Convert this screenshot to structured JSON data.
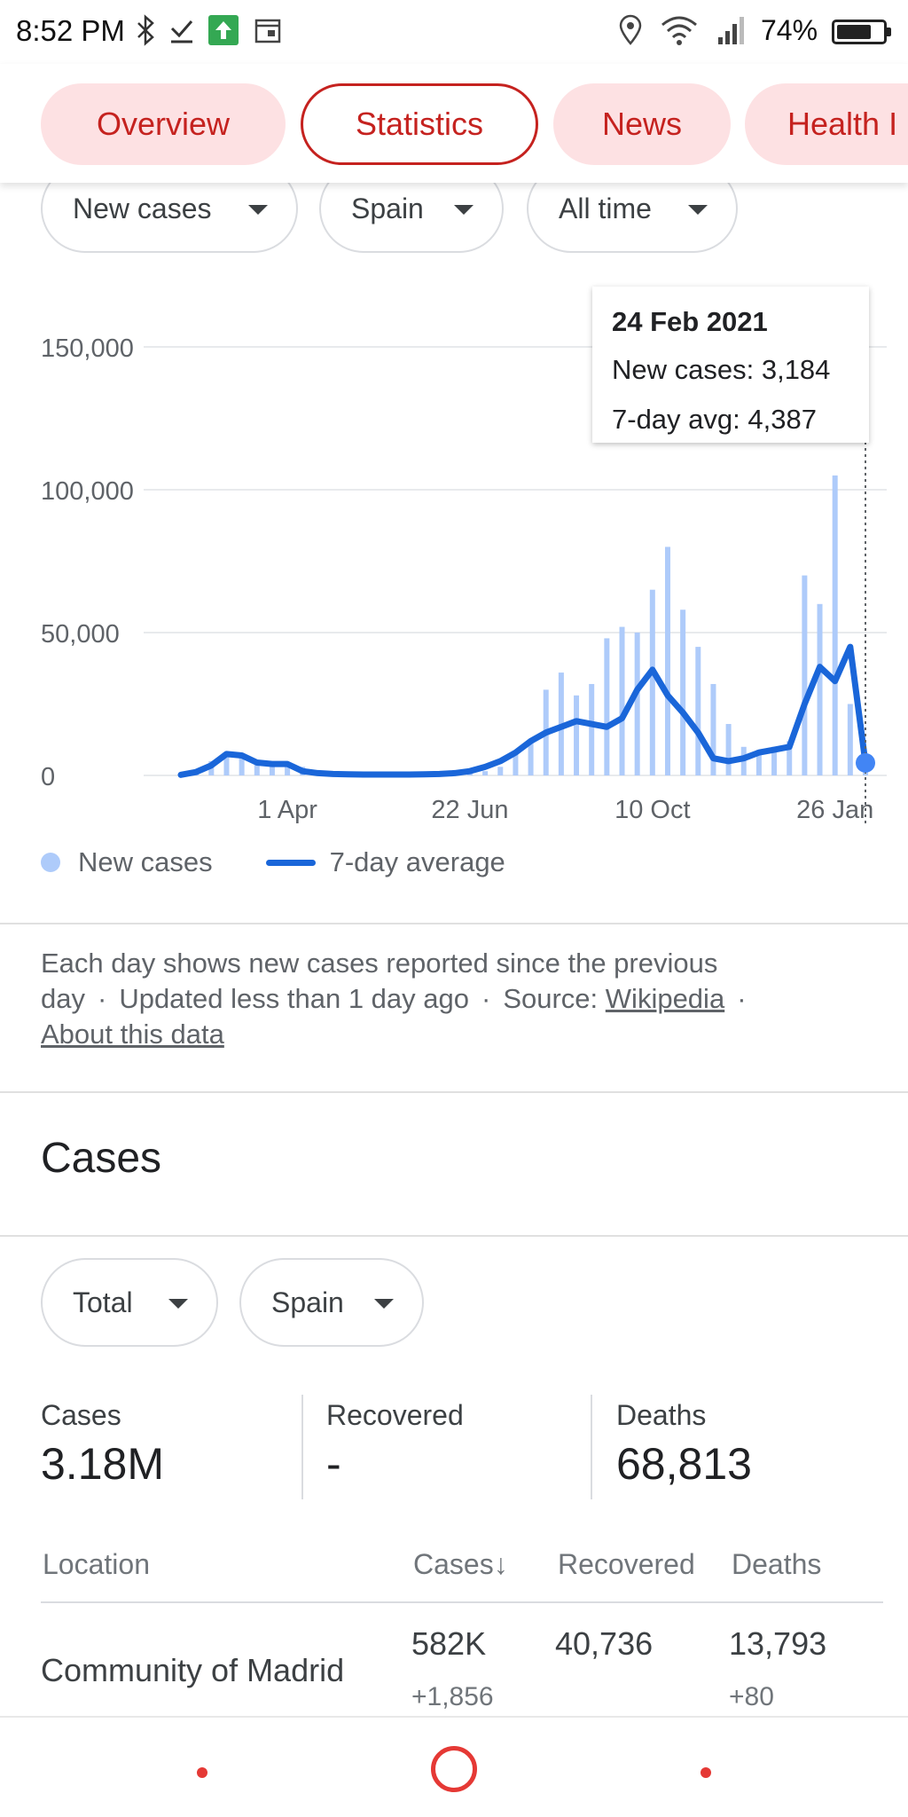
{
  "status_bar": {
    "time": "8:52 PM",
    "battery_text": "74%",
    "battery_level": 0.74,
    "icons": [
      "bluetooth-icon",
      "download-done-icon",
      "app-update-icon",
      "calendar-icon",
      "location-icon",
      "wifi-icon",
      "cell-signal-icon",
      "battery-icon"
    ]
  },
  "tabs": [
    {
      "label": "Overview",
      "active": false
    },
    {
      "label": "Statistics",
      "active": true
    },
    {
      "label": "News",
      "active": false
    },
    {
      "label": "Health I",
      "active": false
    }
  ],
  "filters": {
    "metric": "New cases",
    "region": "Spain",
    "period": "All time"
  },
  "tooltip": {
    "date": "24 Feb 2021",
    "new_cases": "New cases: 3,184",
    "avg": "7-day avg: 4,387"
  },
  "colors": {
    "accent_red": "#c5221f",
    "tab_bg": "#fde1e3",
    "line_blue": "#1a66d9",
    "bar_blue": "#aecbfa"
  },
  "legend": {
    "bars": "New cases",
    "line": "7-day average"
  },
  "chart_data": {
    "type": "bar",
    "ylim": [
      0,
      150000
    ],
    "y_ticks": [
      {
        "value": 0,
        "label": "0"
      },
      {
        "value": 50000,
        "label": "50,000"
      },
      {
        "value": 100000,
        "label": "100,000"
      },
      {
        "value": 150000,
        "label": "150,000"
      }
    ],
    "x_ticks": [
      {
        "week": 7,
        "label": "1 Apr"
      },
      {
        "week": 19,
        "label": "22 Jun"
      },
      {
        "week": 31,
        "label": "10 Oct"
      },
      {
        "week": 43,
        "label": "26 Jan"
      }
    ],
    "x_unit": "weeks from start of data (late Feb 2020)",
    "series": [
      {
        "name": "New cases",
        "kind": "bar",
        "values": [
          200,
          1500,
          5000,
          7500,
          7000,
          4500,
          4000,
          3500,
          3000,
          1500,
          800,
          600,
          500,
          400,
          300,
          300,
          400,
          500,
          600,
          800,
          1500,
          3000,
          8000,
          12000,
          30000,
          36000,
          28000,
          32000,
          48000,
          52000,
          50000,
          65000,
          80000,
          58000,
          45000,
          32000,
          18000,
          10000,
          9000,
          10000,
          12000,
          70000,
          60000,
          105000,
          25000,
          3184
        ]
      },
      {
        "name": "7-day average",
        "kind": "line",
        "values": [
          200,
          1200,
          3500,
          7500,
          7000,
          4500,
          4000,
          4000,
          1500,
          800,
          500,
          400,
          300,
          300,
          300,
          300,
          400,
          500,
          800,
          1500,
          3000,
          5000,
          8000,
          12000,
          15000,
          17000,
          19000,
          18000,
          17000,
          20000,
          30000,
          37000,
          28000,
          22000,
          15000,
          6000,
          5000,
          6000,
          8000,
          9000,
          10000,
          25000,
          38000,
          33000,
          45000,
          4387
        ]
      }
    ]
  },
  "footnote": {
    "text1": "Each day shows new cases reported since the previous day",
    "text2": "Updated less than 1 day ago",
    "source_label": "Source:",
    "source_link": "Wikipedia",
    "about_link": "About this data"
  },
  "cases_section": {
    "title": "Cases",
    "filter_type": "Total",
    "filter_region": "Spain",
    "stats": [
      {
        "label": "Cases",
        "value": "3.18M"
      },
      {
        "label": "Recovered",
        "value": "-"
      },
      {
        "label": "Deaths",
        "value": "68,813"
      }
    ],
    "table": {
      "headers": [
        "Location",
        "Cases",
        "Recovered",
        "Deaths"
      ],
      "sort_arrow": "↓",
      "rows": [
        {
          "location": "Community of Madrid",
          "cases": "582K",
          "cases_new": "+1,856",
          "recovered": "40,736",
          "deaths": "13,793",
          "deaths_new": "+80"
        }
      ]
    }
  }
}
